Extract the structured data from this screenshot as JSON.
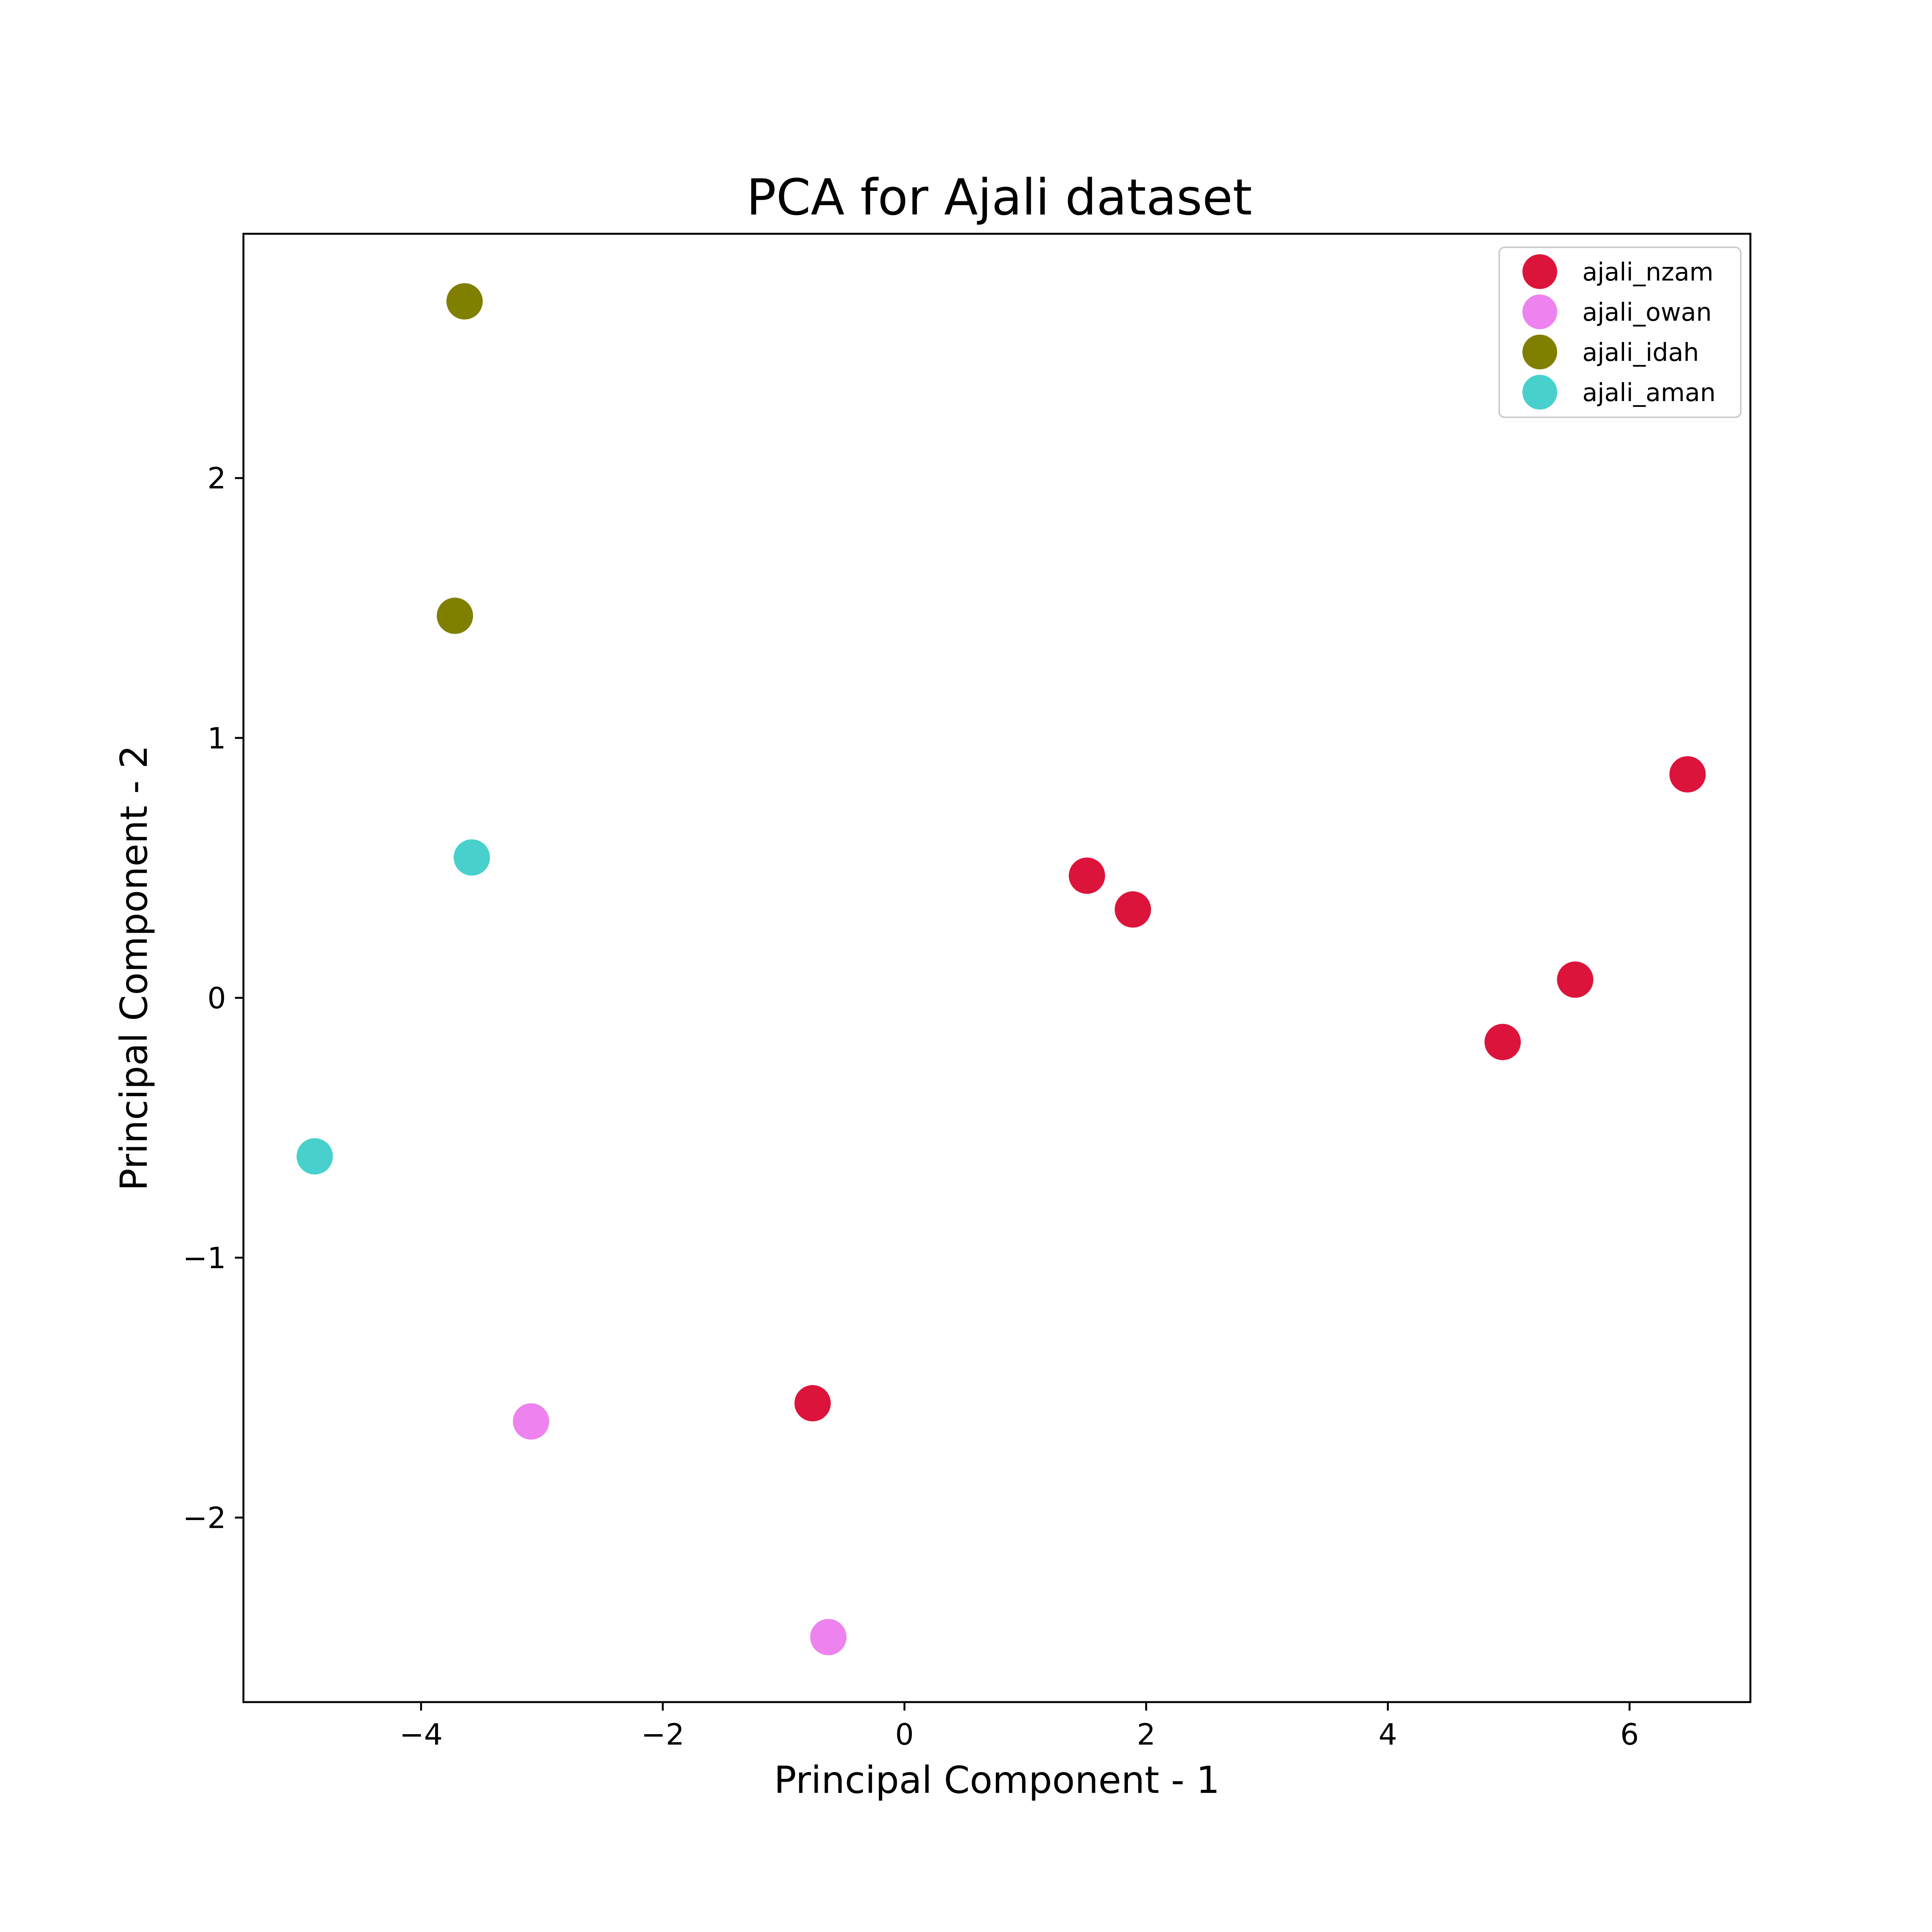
{
  "chart_data": {
    "type": "scatter",
    "title": "PCA for Ajali dataset",
    "xlabel": "Principal Component - 1",
    "ylabel": "Principal Component - 2",
    "xlim": [
      -5.47,
      7.0
    ],
    "ylim": [
      -2.71,
      2.94
    ],
    "xticks": [
      -4,
      -2,
      0,
      2,
      4,
      6
    ],
    "yticks": [
      -2,
      -1,
      0,
      1,
      2
    ],
    "xtick_labels": [
      "−4",
      "−2",
      "0",
      "2",
      "4",
      "6"
    ],
    "ytick_labels": [
      "−2",
      "−1",
      "0",
      "1",
      "2"
    ],
    "grid": false,
    "legend_position": "top-right",
    "series": [
      {
        "name": "ajali_nzam",
        "color": "#DC143C",
        "points": [
          [
            6.48,
            0.86
          ],
          [
            5.55,
            0.07
          ],
          [
            4.95,
            -0.17
          ],
          [
            1.51,
            0.47
          ],
          [
            1.89,
            0.34
          ],
          [
            -0.76,
            -1.56
          ]
        ]
      },
      {
        "name": "ajali_owan",
        "color": "#EE82EE",
        "points": [
          [
            -3.09,
            -1.63
          ],
          [
            -0.63,
            -2.46
          ]
        ]
      },
      {
        "name": "ajali_idah",
        "color": "#808000",
        "points": [
          [
            -3.64,
            2.68
          ],
          [
            -3.72,
            1.47
          ]
        ]
      },
      {
        "name": "ajali_aman",
        "color": "#48D1CC",
        "points": [
          [
            -3.58,
            0.54
          ],
          [
            -4.88,
            -0.61
          ]
        ]
      }
    ]
  }
}
